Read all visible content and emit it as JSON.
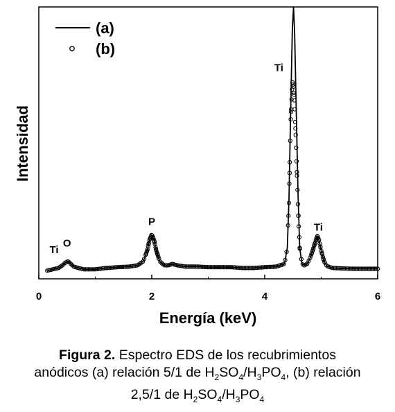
{
  "chart_data": {
    "type": "line",
    "xlabel": "Energía (keV)",
    "ylabel": "Intensidad",
    "xlim": [
      0,
      6
    ],
    "ylim": [
      0,
      100
    ],
    "x_ticks": [
      "0",
      "2",
      "4",
      "6"
    ],
    "y_ticks_labeled": false,
    "legend": {
      "position": "top-left",
      "entries": [
        "(a)",
        "(b)"
      ]
    },
    "series": [
      {
        "name": "(a)",
        "style": "solid-line",
        "x": [
          0.15,
          0.25,
          0.35,
          0.42,
          0.47,
          0.52,
          0.57,
          0.62,
          0.7,
          0.8,
          1.0,
          1.2,
          1.4,
          1.6,
          1.75,
          1.85,
          1.92,
          1.96,
          2.0,
          2.04,
          2.08,
          2.14,
          2.22,
          2.3,
          2.36,
          2.45,
          2.6,
          2.8,
          3.0,
          3.2,
          3.4,
          3.6,
          3.8,
          4.0,
          4.2,
          4.35,
          4.4,
          4.43,
          4.46,
          4.49,
          4.51,
          4.53,
          4.56,
          4.59,
          4.62,
          4.66,
          4.7,
          4.75,
          4.8,
          4.85,
          4.9,
          4.93,
          4.96,
          5.0,
          5.05,
          5.1,
          5.2,
          5.4,
          5.6,
          5.8,
          6.0
        ],
        "y": [
          1.5,
          2,
          2.5,
          3.5,
          4.5,
          5,
          4,
          3,
          2.5,
          2,
          2,
          2.5,
          2.8,
          3,
          3.5,
          5,
          9,
          13,
          14.5,
          13,
          9,
          5,
          3.5,
          3.5,
          4,
          3.5,
          3,
          3,
          2.8,
          2.8,
          2.8,
          2.5,
          2.5,
          2.8,
          3,
          4,
          10,
          28,
          62,
          92,
          100,
          90,
          60,
          30,
          10,
          4,
          3.5,
          4,
          6,
          9,
          12.5,
          14.5,
          13,
          9,
          5,
          3.2,
          2.5,
          2.3,
          2.2,
          2.2,
          2.2
        ]
      },
      {
        "name": "(b)",
        "style": "open-circles",
        "x": [
          0.15,
          0.25,
          0.35,
          0.42,
          0.47,
          0.52,
          0.57,
          0.62,
          0.7,
          0.8,
          1.0,
          1.2,
          1.4,
          1.6,
          1.75,
          1.85,
          1.92,
          1.96,
          2.0,
          2.04,
          2.08,
          2.14,
          2.22,
          2.3,
          2.36,
          2.45,
          2.6,
          2.8,
          3.0,
          3.2,
          3.4,
          3.6,
          3.8,
          4.0,
          4.2,
          4.35,
          4.4,
          4.43,
          4.46,
          4.49,
          4.51,
          4.53,
          4.56,
          4.59,
          4.62,
          4.66,
          4.7,
          4.75,
          4.8,
          4.85,
          4.9,
          4.93,
          4.96,
          5.0,
          5.05,
          5.1,
          5.2,
          5.4,
          5.6,
          5.8,
          6.0
        ],
        "y": [
          1.5,
          2,
          2.5,
          3.5,
          4.5,
          5,
          4,
          3,
          2.5,
          2,
          2,
          2.5,
          2.8,
          3,
          3.5,
          5,
          9,
          13,
          15,
          13,
          9,
          5,
          3.5,
          3.5,
          4,
          3.5,
          3,
          3,
          2.8,
          2.8,
          2.8,
          2.5,
          2.5,
          2.8,
          3,
          4,
          10,
          28,
          58,
          72,
          70,
          63,
          45,
          25,
          10,
          4,
          3.5,
          4,
          6,
          9,
          12.5,
          14.5,
          13,
          9,
          5,
          3.2,
          2.5,
          2.3,
          2.2,
          2.2,
          2.2
        ]
      }
    ],
    "annotations": [
      {
        "text": "Ti",
        "x": 0.27,
        "y": 8
      },
      {
        "text": "O",
        "x": 0.5,
        "y": 10.5
      },
      {
        "text": "P",
        "x": 2.0,
        "y": 18.5
      },
      {
        "text": "Ti",
        "x": 4.25,
        "y": 76
      },
      {
        "text": "Ti",
        "x": 4.95,
        "y": 16.5
      }
    ]
  },
  "caption": {
    "bold_label": "Figura 2.",
    "line1_rest": " Espectro EDS de los recubrimientos",
    "line2_pre": "anódicos (a) relación 5/1 de H",
    "line3_pre": "2,5/1 de H",
    "sub_2": "2",
    "sub_3": "3",
    "sub_4": "4",
    "so": "SO",
    "slash_h": "/H",
    "po": "PO",
    "line2_post": ", (b) relación"
  }
}
